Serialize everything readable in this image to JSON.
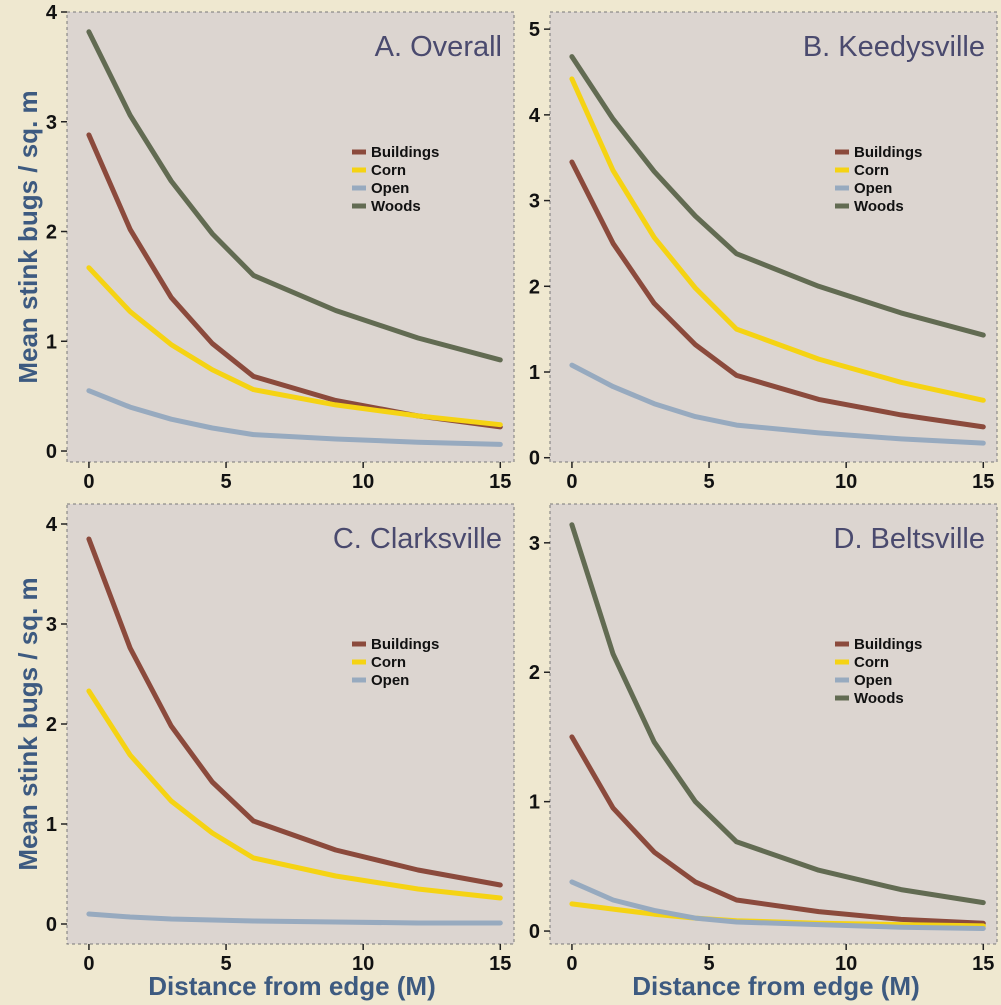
{
  "figure": {
    "ylabel": "Mean stink bugs / sq. m",
    "xlabel": "Distance from edge (M)"
  },
  "colors": {
    "Buildings": "#8b4a3c",
    "Corn": "#f5d313",
    "Open": "#97aabf",
    "Woods": "#626b52",
    "panel_bg": "#dcd5d0",
    "page_bg": "#efe8d0"
  },
  "chart_data": [
    {
      "type": "line",
      "title": "A. Overall",
      "x": [
        0,
        1.5,
        3,
        4.5,
        6,
        9,
        12,
        15
      ],
      "xticks": [
        0,
        5,
        10,
        15
      ],
      "xlim": [
        -0.8,
        15.5
      ],
      "ylim": [
        -0.1,
        4.0
      ],
      "yticks": [
        0,
        1,
        2,
        3,
        4
      ],
      "legend": "right",
      "series": [
        {
          "name": "Buildings",
          "values": [
            2.88,
            2.02,
            1.4,
            0.98,
            0.68,
            0.46,
            0.32,
            0.22
          ]
        },
        {
          "name": "Corn",
          "values": [
            1.67,
            1.27,
            0.97,
            0.74,
            0.56,
            0.42,
            0.32,
            0.24
          ]
        },
        {
          "name": "Open",
          "values": [
            0.55,
            0.4,
            0.29,
            0.21,
            0.15,
            0.11,
            0.08,
            0.06
          ]
        },
        {
          "name": "Woods",
          "values": [
            3.82,
            3.06,
            2.46,
            1.98,
            1.6,
            1.28,
            1.03,
            0.83
          ]
        }
      ]
    },
    {
      "type": "line",
      "title": "B. Keedysville",
      "x": [
        0,
        1.5,
        3,
        4.5,
        6,
        9,
        12,
        15
      ],
      "xticks": [
        0,
        5,
        10,
        15
      ],
      "xlim": [
        -0.8,
        15.5
      ],
      "ylim": [
        -0.05,
        5.2
      ],
      "yticks": [
        0,
        1,
        2,
        3,
        4,
        5
      ],
      "legend": "right",
      "series": [
        {
          "name": "Buildings",
          "values": [
            3.45,
            2.5,
            1.8,
            1.32,
            0.96,
            0.68,
            0.5,
            0.36
          ]
        },
        {
          "name": "Corn",
          "values": [
            4.42,
            3.35,
            2.57,
            1.98,
            1.5,
            1.15,
            0.88,
            0.67
          ]
        },
        {
          "name": "Open",
          "values": [
            1.08,
            0.83,
            0.63,
            0.48,
            0.38,
            0.29,
            0.22,
            0.17
          ]
        },
        {
          "name": "Woods",
          "values": [
            4.68,
            3.95,
            3.34,
            2.82,
            2.38,
            2.0,
            1.69,
            1.43
          ]
        }
      ]
    },
    {
      "type": "line",
      "title": "C. Clarksville",
      "x": [
        0,
        1.5,
        3,
        4.5,
        6,
        9,
        12,
        15
      ],
      "xticks": [
        0,
        5,
        10,
        15
      ],
      "xlim": [
        -0.8,
        15.5
      ],
      "ylim": [
        -0.2,
        4.2
      ],
      "yticks": [
        0,
        1,
        2,
        3,
        4
      ],
      "legend": "right",
      "series": [
        {
          "name": "Buildings",
          "values": [
            3.85,
            2.76,
            1.98,
            1.42,
            1.03,
            0.74,
            0.54,
            0.39
          ]
        },
        {
          "name": "Corn",
          "values": [
            2.33,
            1.69,
            1.23,
            0.91,
            0.66,
            0.48,
            0.35,
            0.26
          ]
        },
        {
          "name": "Open",
          "values": [
            0.1,
            0.07,
            0.05,
            0.04,
            0.03,
            0.02,
            0.01,
            0.01
          ]
        }
      ]
    },
    {
      "type": "line",
      "title": "D. Beltsville",
      "x": [
        0,
        1.5,
        3,
        4.5,
        6,
        9,
        12,
        15
      ],
      "xticks": [
        0,
        5,
        10,
        15
      ],
      "xlim": [
        -0.8,
        15.5
      ],
      "ylim": [
        -0.1,
        3.3
      ],
      "yticks": [
        0,
        1,
        2,
        3
      ],
      "legend": "right",
      "series": [
        {
          "name": "Buildings",
          "values": [
            1.5,
            0.95,
            0.61,
            0.38,
            0.24,
            0.15,
            0.09,
            0.06
          ]
        },
        {
          "name": "Corn",
          "values": [
            0.21,
            0.17,
            0.13,
            0.1,
            0.08,
            0.06,
            0.05,
            0.04
          ]
        },
        {
          "name": "Open",
          "values": [
            0.38,
            0.24,
            0.16,
            0.1,
            0.07,
            0.05,
            0.03,
            0.02
          ]
        },
        {
          "name": "Woods",
          "values": [
            3.14,
            2.14,
            1.46,
            1.0,
            0.69,
            0.47,
            0.32,
            0.22
          ]
        }
      ]
    }
  ]
}
